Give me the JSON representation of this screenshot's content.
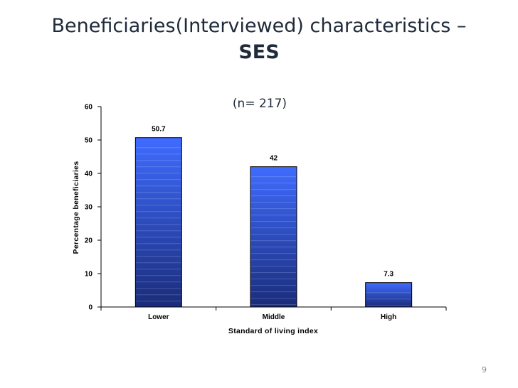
{
  "slide": {
    "title_line1": "Beneficiaries(Interviewed) characteristics –",
    "title_line2": "SES",
    "page_number": "9"
  },
  "chart_data": {
    "type": "bar",
    "subtitle": "(n= 217)",
    "categories": [
      "Lower",
      "Middle",
      "High"
    ],
    "values": [
      50.7,
      42,
      7.3
    ],
    "value_labels": [
      "50.7",
      "42",
      "7.3"
    ],
    "xlabel": "Standard of living index",
    "ylabel": "Percentage beneficiaries",
    "ylim": [
      0,
      60
    ],
    "yticks": [
      0,
      10,
      20,
      30,
      40,
      50,
      60
    ],
    "grid": false,
    "bar_color_top": "#3f6cff",
    "bar_color_bottom": "#1a2c7a"
  }
}
